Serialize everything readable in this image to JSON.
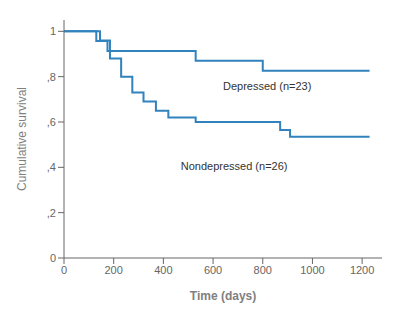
{
  "chart_data": {
    "type": "line",
    "xlabel": "Time (days)",
    "ylabel": "Cumulative survival",
    "series": [
      {
        "x": [
          0,
          130,
          130,
          175,
          175,
          530,
          530,
          800,
          800,
          1230
        ],
        "values": [
          1.0,
          1.0,
          0.957,
          0.957,
          0.913,
          0.913,
          0.87,
          0.87,
          0.826,
          0.826
        ]
      },
      {
        "x": [
          0,
          145,
          145,
          185,
          185,
          230,
          230,
          275,
          275,
          320,
          320,
          370,
          370,
          420,
          420,
          480,
          480,
          530,
          530,
          640,
          640,
          870,
          870,
          910,
          910,
          1230
        ],
        "values": [
          1.0,
          1.0,
          0.96,
          0.96,
          0.88,
          0.88,
          0.8,
          0.8,
          0.73,
          0.73,
          0.69,
          0.69,
          0.65,
          0.65,
          0.62,
          0.62,
          0.62,
          0.62,
          0.6,
          0.6,
          0.6,
          0.6,
          0.565,
          0.565,
          0.535,
          0.535
        ]
      }
    ],
    "annotations": [
      {
        "text": "Depressed (n=23)",
        "x": 640,
        "y": 0.79
      },
      {
        "text": "Nondepressed (n=26)",
        "x": 470,
        "y": 0.435
      }
    ],
    "xlim": [
      0,
      1280
    ],
    "ylim": [
      0,
      1.05
    ],
    "xticks": [
      0,
      200,
      400,
      600,
      800,
      1000,
      1200
    ],
    "yticks": [
      0,
      {
        "value": 0.2,
        "label": ",2"
      },
      {
        "value": 0.4,
        "label": ",4"
      },
      {
        "value": 0.6,
        "label": ",6"
      },
      {
        "value": 0.8,
        "label": ",8"
      },
      1
    ],
    "grid": false
  }
}
